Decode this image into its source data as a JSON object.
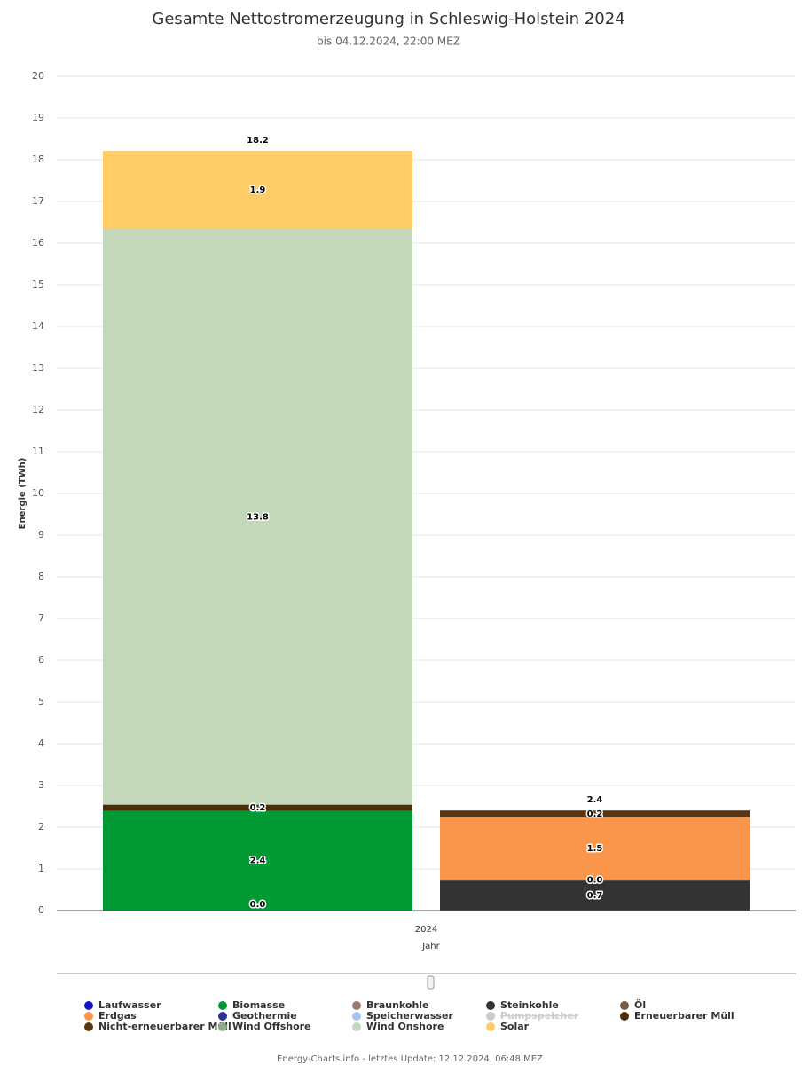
{
  "chart_data": {
    "type": "stacked_bar",
    "title": "Gesamte Nettostromerzeugung in Schleswig-Holstein 2024",
    "subtitle": "bis 04.12.2024, 22:00 MEZ",
    "y_label": "Energie (TWh)",
    "x_label": "Jahr",
    "categories": [
      "2024"
    ],
    "ylim": [
      0,
      20
    ],
    "yticks": [
      0,
      1,
      2,
      3,
      4,
      5,
      6,
      7,
      8,
      9,
      10,
      11,
      12,
      13,
      14,
      15,
      16,
      17,
      18,
      19,
      20
    ],
    "grid": true,
    "legend": "bottom",
    "series": [
      {
        "name": "Laufwasser",
        "color": "#1414c8",
        "stack": 0,
        "values": [
          0.01
        ],
        "value_labels": [
          "0.0"
        ]
      },
      {
        "name": "Biomasse",
        "color": "#009933",
        "stack": 0,
        "values": [
          2.38
        ],
        "value_labels": [
          "2.4"
        ]
      },
      {
        "name": "Braunkohle",
        "color": "#9b7b68",
        "stack": 1,
        "values": [
          null
        ]
      },
      {
        "name": "Steinkohle",
        "color": "#333333",
        "stack": 1,
        "values": [
          0.72
        ],
        "value_labels": [
          "0.7"
        ]
      },
      {
        "name": "Öl",
        "color": "#7a5a42",
        "stack": 1,
        "values": [
          0.02
        ],
        "value_labels": [
          "0.0"
        ]
      },
      {
        "name": "Erdgas",
        "color": "#f9964b",
        "stack": 1,
        "values": [
          1.5
        ]
      },
      {
        "name": "Geothermie",
        "color": "#2e3192",
        "stack": 0,
        "values": [
          null
        ]
      },
      {
        "name": "Speicherwasser",
        "color": "#a3c4ef",
        "stack": 0,
        "values": [
          null
        ]
      },
      {
        "name": "Pumpspeicher",
        "color": "#cccccc",
        "stack": 1,
        "visible": false,
        "values": [
          null
        ]
      },
      {
        "name": "Erneuerbarer Müll",
        "color": "#4d2c0a",
        "stack": 0,
        "values": [
          0.15
        ],
        "value_labels": [
          "0.2"
        ]
      },
      {
        "name": "Nicht-erneuerbarer Müll",
        "color": "#5a3510",
        "stack": 1,
        "values": [
          0.16
        ],
        "value_labels": [
          "0.2"
        ]
      },
      {
        "name": "Wind Offshore",
        "color": "#8daa8b",
        "stack": 0,
        "values": [
          null
        ]
      },
      {
        "name": "Wind Onshore",
        "color": "#c3d8ba",
        "stack": 0,
        "values": [
          13.8
        ]
      },
      {
        "name": "Solar",
        "color": "#ffcc66",
        "stack": 0,
        "values": [
          1.87
        ],
        "value_labels": [
          "1.9"
        ]
      }
    ],
    "stack_totals": [
      {
        "value": 18.2
      },
      {
        "value": 2.4
      }
    ],
    "footer": "Energy-Charts.info - letztes Update: 12.12.2024, 06:48 MEZ"
  }
}
